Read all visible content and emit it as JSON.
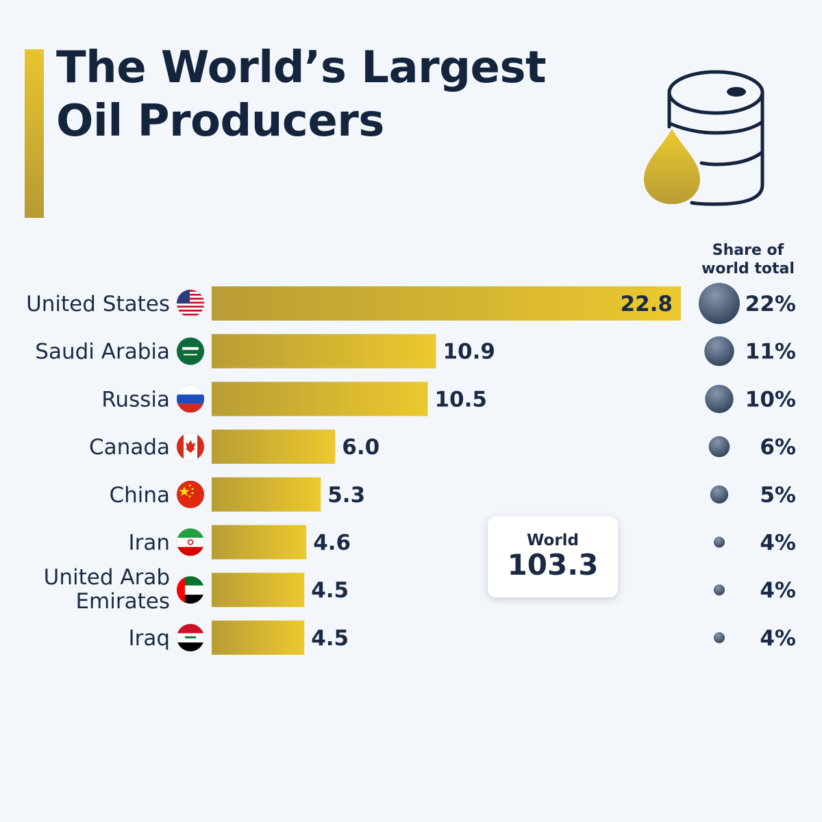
{
  "title_line1": "The World’s Largest",
  "title_line2": "Oil Producers",
  "share_header_line1": "Share of",
  "share_header_line2": "world total",
  "world": {
    "label": "World",
    "value": "103.3"
  },
  "colors": {
    "bar_start": "#b89d35",
    "bar_end": "#ecc92e",
    "dot_light": "#8796ab",
    "dot_dark": "#2e4059",
    "text": "#1b2a44"
  },
  "chart_data": {
    "type": "bar",
    "orientation": "horizontal",
    "categories": [
      [
        "United States"
      ],
      [
        "Saudi Arabia"
      ],
      [
        "Russia"
      ],
      [
        "Canada"
      ],
      [
        "China"
      ],
      [
        "Iran"
      ],
      [
        "United Arab",
        "Emirates"
      ],
      [
        "Iraq"
      ]
    ],
    "values": [
      22.8,
      10.9,
      10.5,
      6.0,
      5.3,
      4.6,
      4.5,
      4.5
    ],
    "value_labels": [
      "22.8",
      "10.9",
      "10.5",
      "6.0",
      "5.3",
      "4.6",
      "4.5",
      "4.5"
    ],
    "shares": [
      22,
      11,
      10,
      6,
      5,
      4,
      4,
      4
    ],
    "share_labels": [
      "22%",
      "11%",
      "10%",
      "6%",
      "5%",
      "4%",
      "4%",
      "4%"
    ],
    "flags": [
      "us-flag-icon",
      "saudi-flag-icon",
      "russia-flag-icon",
      "canada-flag-icon",
      "china-flag-icon",
      "iran-flag-icon",
      "uae-flag-icon",
      "iraq-flag-icon"
    ]
  }
}
